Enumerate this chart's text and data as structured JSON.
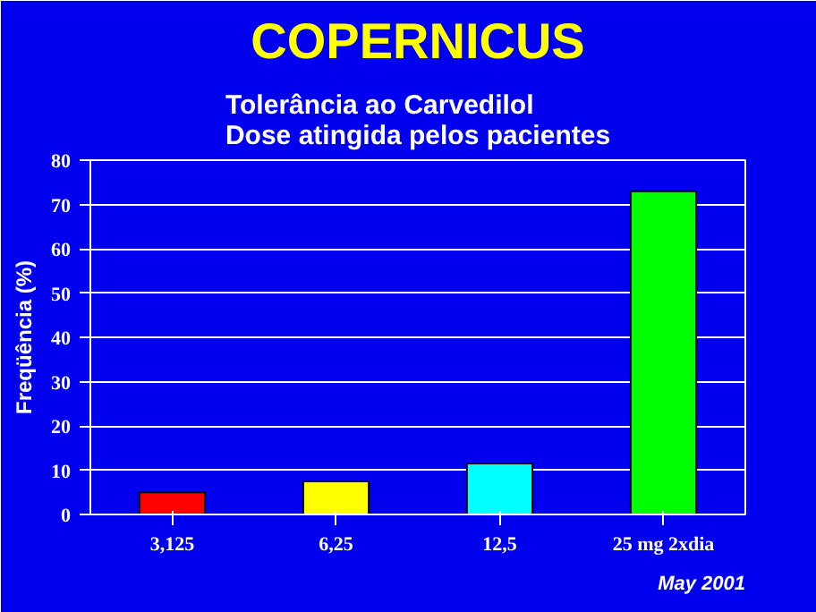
{
  "chart_data": {
    "type": "bar",
    "title": "COPERNICUS",
    "subtitle": "Tolerância ao Carvedilol\nDose atingida pelos pacientes",
    "ylabel": "Freqüência (%)",
    "categories": [
      "3,125",
      "6,25",
      "12,5",
      "25 mg 2xdia"
    ],
    "values": [
      5,
      7.5,
      11.5,
      73
    ],
    "colors": [
      "#ff0000",
      "#ffff00",
      "#00ffff",
      "#00ff00"
    ],
    "ylim": [
      0,
      80
    ],
    "yticks": [
      0,
      10,
      20,
      30,
      40,
      50,
      60,
      70,
      80
    ],
    "grid": "y",
    "annotations": [
      "May 2001"
    ]
  }
}
